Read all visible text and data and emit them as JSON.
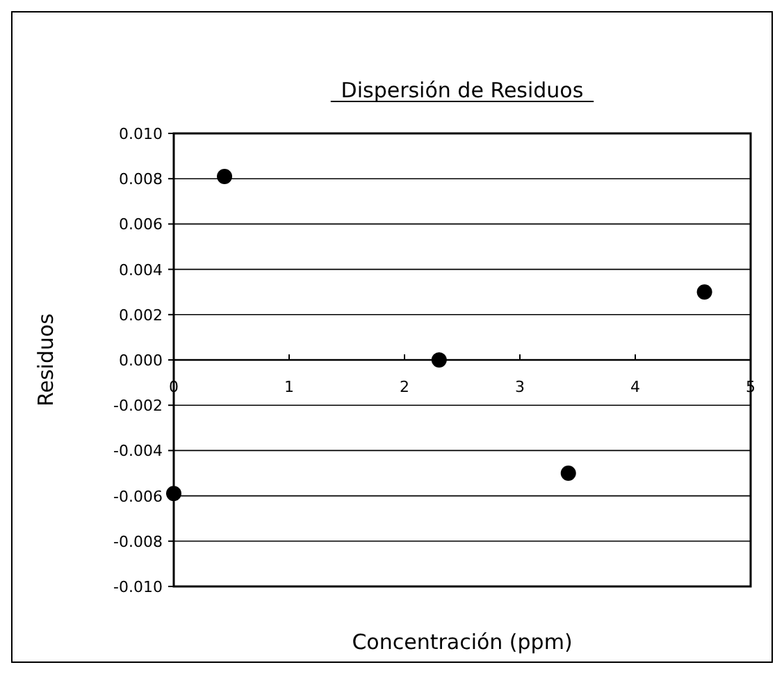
{
  "chart_data": {
    "type": "scatter",
    "title": "Dispersión de Residuos",
    "xlabel": "Concentración (ppm)",
    "ylabel": "Residuos",
    "x": [
      0,
      0.44,
      2.3,
      3.42,
      4.6
    ],
    "values": [
      -0.0059,
      0.0081,
      0.0,
      -0.005,
      0.003
    ],
    "color": "#000000",
    "marker": "circle",
    "grid": "y",
    "xlim": [
      0,
      5
    ],
    "xticks": [
      0,
      1,
      2,
      3,
      4,
      5
    ],
    "ylim": [
      -0.01,
      0.01
    ],
    "yticks": [
      {
        "value": -0.01,
        "label": "-0.010"
      },
      {
        "value": -0.008,
        "label": "-0.008"
      },
      {
        "value": -0.006,
        "label": "-0.006"
      },
      {
        "value": -0.004,
        "label": "-0.004"
      },
      {
        "value": -0.002,
        "label": "-0.002"
      },
      {
        "value": 0,
        "label": "0.000"
      },
      {
        "value": 0.002,
        "label": "0.002"
      },
      {
        "value": 0.004,
        "label": "0.004"
      },
      {
        "value": 0.006,
        "label": "0.006"
      },
      {
        "value": 0.008,
        "label": "0.008"
      },
      {
        "value": 0.01,
        "label": "0.010"
      }
    ]
  }
}
